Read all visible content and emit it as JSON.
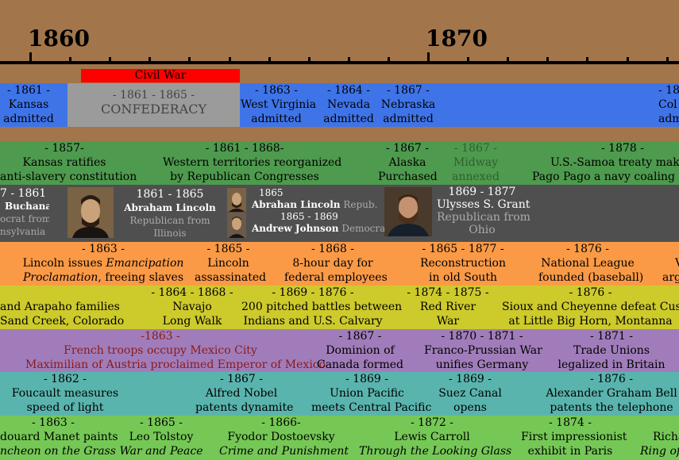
{
  "years": {
    "y1860": "1860",
    "y1870": "1870"
  },
  "civil_war": {
    "label": "Civil War",
    "color": "#ff0000"
  },
  "states": [
    {
      "year": "- 1861 -",
      "l1": "Kansas",
      "l2": "admitted"
    },
    {
      "year": "- 1863 -",
      "l1": "West Virginia",
      "l2": "admitted"
    },
    {
      "year": "- 1864 -",
      "l1": "Nevada",
      "l2": "admitted"
    },
    {
      "year": "- 1867 -",
      "l1": "Nebraska",
      "l2": "admitted"
    },
    {
      "year": "- 18",
      "l1": "Col",
      "l2": "adm"
    }
  ],
  "confederacy": {
    "year": "- 1861 - 1865 -",
    "label": "CONFEDERACY"
  },
  "territory": [
    {
      "year": "- 1857-",
      "l1": "Kansas ratifies",
      "l2": "anti-slavery constitution"
    },
    {
      "year": "- 1861 - 1868-",
      "l1": "Western territories reorganized",
      "l2": "by Republican Congresses"
    },
    {
      "year": "- 1867 -",
      "l1": "Alaska",
      "l2": "Purchased"
    },
    {
      "year": "- 1867 -",
      "l1": "Midway",
      "l2": "annexed"
    },
    {
      "year": "- 1878 -",
      "l1": "U.S.-Samoa treaty makes",
      "l2": "Pago Pago a navy coaling sta"
    }
  ],
  "presidents": {
    "p1": {
      "years": "7 - 1861",
      "name": "Buchanan",
      "party1": "ocrat from",
      "party2": "nsylvania"
    },
    "p2": {
      "years": "1861 - 1865",
      "name": "Abraham Lincoln",
      "party1": "Republican from",
      "party2": "Illinois"
    },
    "p3": {
      "years": "1865",
      "name": "Abrahan Lincoln",
      "party": "Repub.",
      "years2": "1865 - 1869",
      "name2": "Andrew Johnson",
      "party2": "Democrat"
    },
    "p4": {
      "years": "1869 - 1877",
      "name": "Ulysses S. Grant",
      "party1": "Republican from",
      "party2": "Ohio"
    }
  },
  "politics": [
    {
      "year": "- 1863 -",
      "l1": "Lincoln issues ",
      "l1i": "Emancipation",
      "l2i": "Proclamation",
      "l2": ", freeing slaves"
    },
    {
      "year": "- 1865 -",
      "l1": "Lincoln",
      "l2": "assassinated"
    },
    {
      "year": "- 1868 -",
      "l1": "8-hour day for",
      "l2": "federal employees"
    },
    {
      "year": "- 1865 - 1877 -",
      "l1": "Reconstruction",
      "l2": "in old South"
    },
    {
      "year": "- 1876 -",
      "l1": "National League",
      "l2": "founded (baseball)"
    },
    {
      "year": "",
      "l1": "V",
      "l2": "arg"
    }
  ],
  "indians": [
    {
      "year": "",
      "l1": "and Arapaho families",
      "l2": "Sand Creek, Colorado"
    },
    {
      "year": "- 1864 - 1868 -",
      "l1": "Navajo",
      "l2": "Long Walk"
    },
    {
      "year": "- 1869 - 1876 -",
      "l1": "200 pitched battles between",
      "l2": "Indians and U.S. Calvary"
    },
    {
      "year": "- 1874 - 1875 -",
      "l1": "Red River",
      "l2": "War"
    },
    {
      "year": "- 1876 -",
      "l1": "Sioux and Cheyenne defeat Custer",
      "l2": "at Little Big Horn, Montanna"
    }
  ],
  "world": [
    {
      "year": "-1863 -",
      "l1": "French troops occupy Mexico City",
      "l2": "Maximilian of Austria proclaimed Emperor of Mexico"
    },
    {
      "year": "- 1867 -",
      "l1": "Dominion of",
      "l2": "Canada formed"
    },
    {
      "year": "- 1870 - 1871 -",
      "l1": "Franco-Prussian War",
      "l2": "unifies Germany"
    },
    {
      "year": "- 1871 -",
      "l1": "Trade Unions",
      "l2": "legalized in Britain"
    }
  ],
  "science": [
    {
      "year": "- 1862 -",
      "l1": "Foucault measures",
      "l2": "speed of light"
    },
    {
      "year": "- 1867 -",
      "l1": "Alfred Nobel",
      "l2": "patents dynamite"
    },
    {
      "year": "- 1869 -",
      "l1": "Union Pacific",
      "l2": "meets Central Pacific"
    },
    {
      "year": "- 1869 -",
      "l1": "Suez Canal",
      "l2": "opens"
    },
    {
      "year": "- 1876 -",
      "l1": "Alexander Graham Bell",
      "l2": "patents the telephone"
    }
  ],
  "culture": [
    {
      "year": "- 1863 -",
      "l1": "douard Manet paints",
      "l2": "ncheon on the Grass"
    },
    {
      "year": "- 1865 -",
      "l1": "Leo Tolstoy",
      "l2": "War and Peace"
    },
    {
      "year": "- 1866-",
      "l1": "Fyodor Dostoevsky",
      "l2": "Crime and Punishment"
    },
    {
      "year": "- 1872 -",
      "l1": "Lewis Carroll",
      "l2": "Through the Looking Glass"
    },
    {
      "year": "- 1874 -",
      "l1": "First impressionist",
      "l2": "exhibit in Paris"
    },
    {
      "year": "",
      "l1": "Richa",
      "l2": "Ring of"
    }
  ]
}
